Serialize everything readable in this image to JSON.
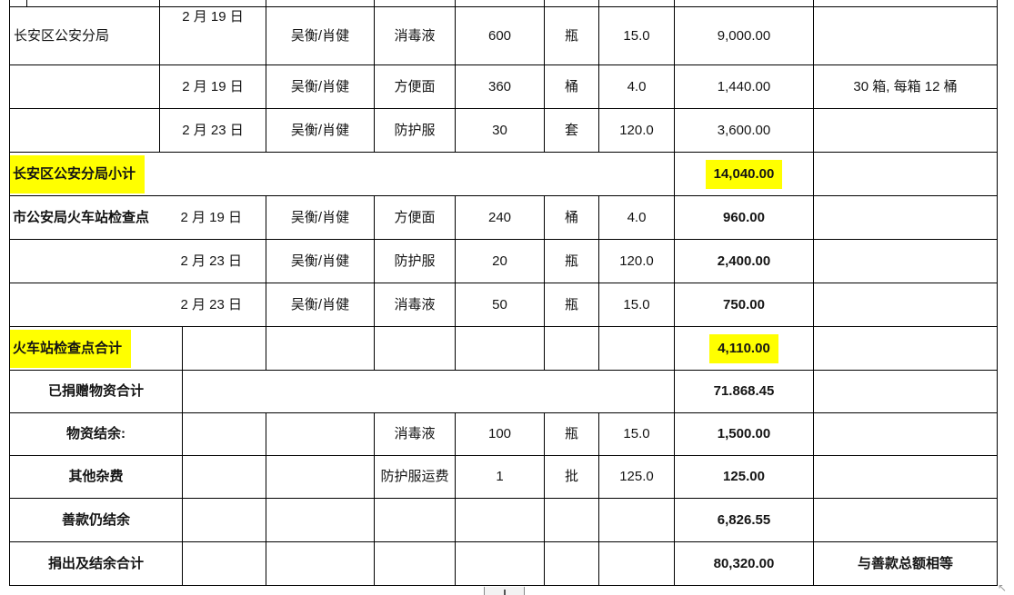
{
  "table": {
    "highlight_color": "#FFFF00",
    "rows": {
      "r1": {
        "donee": "长安区公安分局",
        "date": "2 月 19 日",
        "handler": "吴衡/肖健",
        "item": "消毒液",
        "qty": "600",
        "unit": "瓶",
        "price": "15.0",
        "amount": "9,000.00",
        "note": ""
      },
      "r2": {
        "donee": "",
        "date": "2 月 19 日",
        "handler": "吴衡/肖健",
        "item": "方便面",
        "qty": "360",
        "unit": "桶",
        "price": "4.0",
        "amount": "1,440.00",
        "note": "30 箱, 每箱 12 桶"
      },
      "r3": {
        "donee": "",
        "date": "2 月 23 日",
        "handler": "吴衡/肖健",
        "item": "防护服",
        "qty": "30",
        "unit": "套",
        "price": "120.0",
        "amount": "3,600.00",
        "note": ""
      },
      "r4": {
        "label": "长安区公安分局小计",
        "amount": "14,040.00",
        "note": ""
      },
      "r5": {
        "donee": "市公安局火车站检查点",
        "date": "2 月 19 日",
        "handler": "吴衡/肖健",
        "item": "方便面",
        "qty": "240",
        "unit": "桶",
        "price": "4.0",
        "amount": "960.00",
        "note": ""
      },
      "r6": {
        "donee": "",
        "date": "2 月 23 日",
        "handler": "吴衡/肖健",
        "item": "防护服",
        "qty": "20",
        "unit": "瓶",
        "price": "120.0",
        "amount": "2,400.00",
        "note": ""
      },
      "r7": {
        "donee": "",
        "date": "2 月 23 日",
        "handler": "吴衡/肖健",
        "item": "消毒液",
        "qty": "50",
        "unit": "瓶",
        "price": "15.0",
        "amount": "750.00",
        "note": ""
      },
      "r8": {
        "label": "火车站检查点合计",
        "amount": "4,110.00",
        "note": ""
      },
      "r9": {
        "label": "已捐赠物资合计",
        "amount": "71.868.45",
        "note": ""
      },
      "r10": {
        "label": "物资结余:",
        "item": "消毒液",
        "qty": "100",
        "unit": "瓶",
        "price": "15.0",
        "amount": "1,500.00",
        "note": ""
      },
      "r11": {
        "label": "其他杂费",
        "item": "防护服运费",
        "qty": "1",
        "unit": "批",
        "price": "125.0",
        "amount": "125.00",
        "note": ""
      },
      "r12": {
        "label": "善款仍结余",
        "amount": "6,826.55",
        "note": ""
      },
      "r13": {
        "label": "捐出及结余合计",
        "amount": "80,320.00",
        "note": "与善款总额相等"
      }
    }
  },
  "artifacts": {
    "corner_arrow_icon": "↖"
  }
}
